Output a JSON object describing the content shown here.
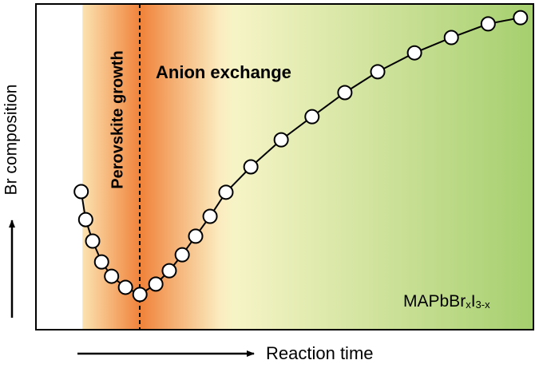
{
  "chart_data": {
    "type": "line",
    "x_label": "Reaction time",
    "y_label": "Br composition",
    "annotations": {
      "growth": "Perovskite growth",
      "exchange": "Anion exchange",
      "formula": {
        "base": "MAPbBr",
        "sub1": "x",
        "mid": "I",
        "sub2": "3-x"
      }
    },
    "xlim": [
      0,
      100
    ],
    "ylim": [
      0,
      100
    ],
    "x": [
      9.1,
      10.0,
      11.4,
      13.2,
      15.2,
      18.0,
      20.9,
      24.1,
      26.8,
      29.4,
      32.1,
      35.0,
      38.2,
      43.2,
      49.3,
      55.5,
      62.1,
      68.7,
      76.1,
      83.5,
      90.9,
      97.4
    ],
    "values": [
      42.4,
      33.8,
      27.2,
      20.8,
      16.4,
      13.0,
      10.8,
      14.0,
      18.1,
      23.0,
      28.7,
      34.8,
      42.2,
      50.0,
      58.3,
      65.4,
      72.8,
      79.2,
      85.0,
      89.7,
      93.9,
      95.8
    ],
    "color": "#000000"
  }
}
